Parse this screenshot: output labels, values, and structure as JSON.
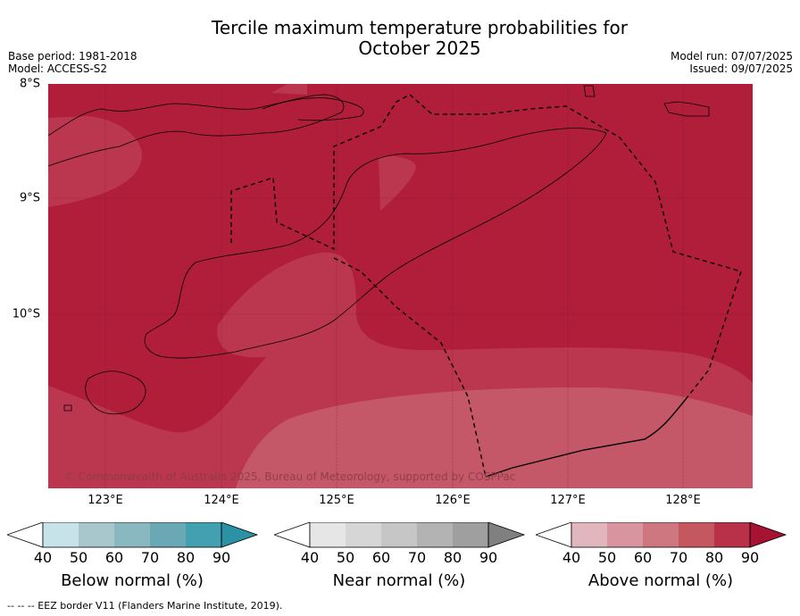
{
  "title_line1": "Tercile maximum temperature probabilities for",
  "title_line2": "October 2025",
  "meta_left": {
    "base_period": "Base period: 1981-2018",
    "model": "Model: ACCESS-S2"
  },
  "meta_right": {
    "model_run": "Model run: 07/07/2025",
    "issued": "Issued: 09/07/2025"
  },
  "axes": {
    "lat_labels": [
      "8°S",
      "9°S",
      "10°S"
    ],
    "lon_labels": [
      "123°E",
      "124°E",
      "125°E",
      "126°E",
      "127°E",
      "128°E"
    ]
  },
  "copyright": "© Commonwealth of Australia 2025, Bureau of Meteorology, supported by COSPPac",
  "colors": {
    "above_90": "#b01e3a",
    "above_80": "#bb3750",
    "above_70": "#c45868",
    "below_ramp": [
      "#ffffff",
      "#c7e2e9",
      "#a8c7cc",
      "#8ab8c0",
      "#6aa8b5",
      "#43a0b0",
      "#2b92a5"
    ],
    "near_ramp": [
      "#ffffff",
      "#e6e6e6",
      "#d6d6d6",
      "#c6c6c6",
      "#b3b3b3",
      "#9f9f9f",
      "#808080"
    ],
    "above_ramp": [
      "#ffffff",
      "#e2b6bd",
      "#d9959f",
      "#cf7781",
      "#c4575f",
      "#b93149",
      "#a51232"
    ]
  },
  "colorbars": [
    {
      "label": "Below normal (%)",
      "ticks": [
        "40",
        "50",
        "60",
        "70",
        "80",
        "90"
      ]
    },
    {
      "label": "Near normal (%)",
      "ticks": [
        "40",
        "50",
        "60",
        "70",
        "80",
        "90"
      ]
    },
    {
      "label": "Above normal (%)",
      "ticks": [
        "40",
        "50",
        "60",
        "70",
        "80",
        "90"
      ]
    }
  ],
  "footnote": "--  --  -- EEZ border V11 (Flanders Marine Institute, 2019)."
}
